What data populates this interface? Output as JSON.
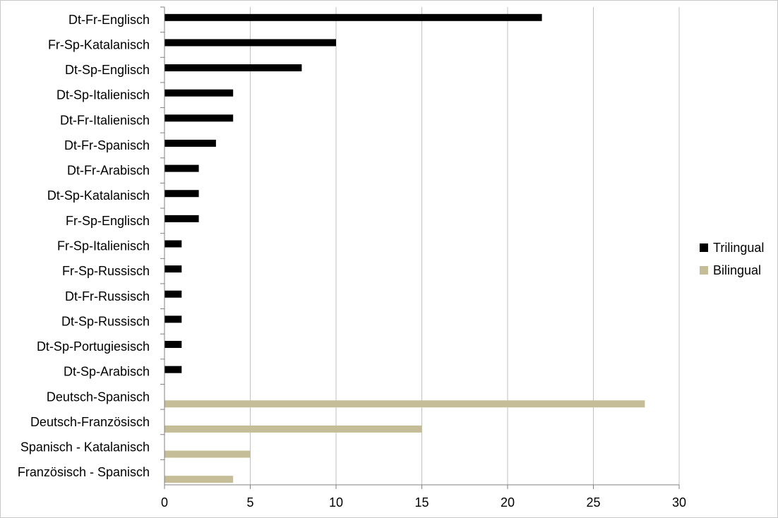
{
  "chart_data": {
    "type": "bar",
    "orientation": "horizontal",
    "title": "",
    "xlabel": "",
    "ylabel": "",
    "xlim": [
      0,
      30
    ],
    "x_ticks": [
      0,
      5,
      10,
      15,
      20,
      25,
      30
    ],
    "grid": "vertical",
    "legend_position": "right",
    "categories": [
      "Dt-Fr-Englisch",
      "Fr-Sp-Katalanisch",
      "Dt-Sp-Englisch",
      "Dt-Sp-Italienisch",
      "Dt-Fr-Italienisch",
      "Dt-Fr-Spanisch",
      "Dt-Fr-Arabisch",
      "Dt-Sp-Katalanisch",
      "Fr-Sp-Englisch",
      "Fr-Sp-Italienisch",
      "Fr-Sp-Russisch",
      "Dt-Fr-Russisch",
      "Dt-Sp-Russisch",
      "Dt-Sp-Portugiesisch",
      "Dt-Sp-Arabisch",
      "Deutsch-Spanisch",
      "Deutsch-Französisch",
      "Spanisch - Katalanisch",
      "Französisch - Spanisch"
    ],
    "series": [
      {
        "name": "Trilingual",
        "color": "#000000",
        "values": [
          22,
          10,
          8,
          4,
          4,
          3,
          2,
          2,
          2,
          1,
          1,
          1,
          1,
          1,
          1,
          null,
          null,
          null,
          null
        ]
      },
      {
        "name": "Bilingual",
        "color": "#c4bd97",
        "values": [
          null,
          null,
          null,
          null,
          null,
          null,
          null,
          null,
          null,
          null,
          null,
          null,
          null,
          null,
          null,
          28,
          15,
          5,
          4
        ]
      }
    ]
  }
}
